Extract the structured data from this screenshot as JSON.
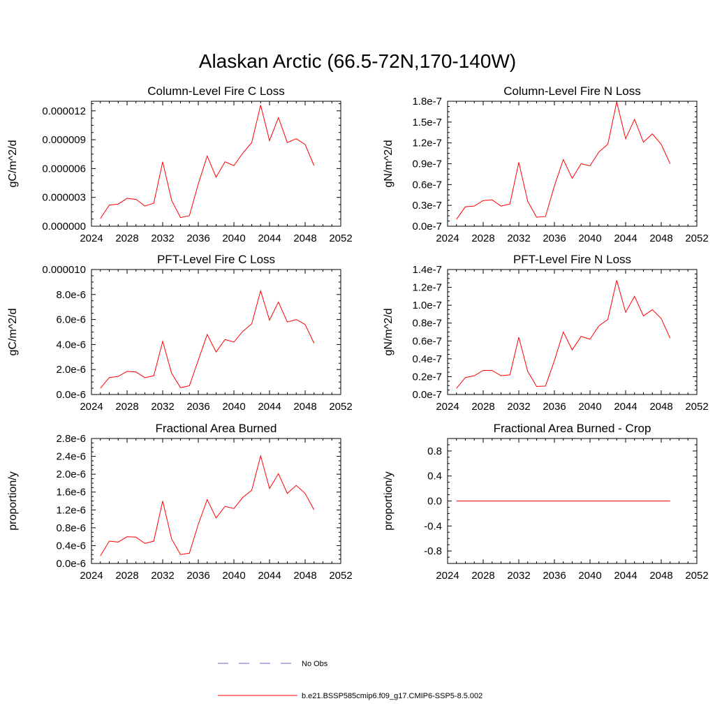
{
  "title": "Alaskan Arctic (66.5-72N,170-140W)",
  "colors": {
    "model": "#ff0000",
    "obs": "#6666cc",
    "axis": "#000000"
  },
  "legend": [
    {
      "label": "No Obs",
      "style": "dashed",
      "color": "#6666cc"
    },
    {
      "label": "b.e21.BSSP585cmip6.f09_g17.CMIP6-SSP5-8.5.002",
      "style": "solid",
      "color": "#ff0000"
    }
  ],
  "chart_data": [
    {
      "type": "line",
      "title": "Column-Level Fire C Loss",
      "xlabel": "",
      "ylabel": "gC/m^2/d",
      "xlim": [
        2024,
        2052
      ],
      "ylim": [
        0,
        1.3e-05
      ],
      "xticks": [
        2024,
        2028,
        2032,
        2036,
        2040,
        2044,
        2048,
        2052
      ],
      "yticks": [
        0,
        3e-06,
        6e-06,
        9e-06,
        1.2e-05
      ],
      "yticklabels": [
        "0.000000",
        "0.000003",
        "0.000006",
        "0.000009",
        "0.000012"
      ],
      "x": [
        2025,
        2026,
        2027,
        2028,
        2029,
        2030,
        2031,
        2032,
        2033,
        2034,
        2035,
        2036,
        2037,
        2038,
        2039,
        2040,
        2041,
        2042,
        2043,
        2044,
        2045,
        2046,
        2047,
        2048,
        2049
      ],
      "series": [
        {
          "values": [
            8e-07,
            2.2e-06,
            2.3e-06,
            2.9e-06,
            2.8e-06,
            2.1e-06,
            2.4e-06,
            6.7e-06,
            2.7e-06,
            9e-07,
            1.1e-06,
            4.4e-06,
            7.3e-06,
            5.1e-06,
            6.7e-06,
            6.3e-06,
            7.6e-06,
            8.7e-06,
            1.26e-05,
            8.9e-06,
            1.13e-05,
            8.7e-06,
            9.1e-06,
            8.5e-06,
            6.3e-06
          ]
        }
      ]
    },
    {
      "type": "line",
      "title": "Column-Level Fire N Loss",
      "xlabel": "",
      "ylabel": "gN/m^2/d",
      "xlim": [
        2024,
        2052
      ],
      "ylim": [
        0,
        1.8e-07
      ],
      "xticks": [
        2024,
        2028,
        2032,
        2036,
        2040,
        2044,
        2048,
        2052
      ],
      "yticks": [
        0,
        3e-08,
        6e-08,
        9e-08,
        1.2e-07,
        1.5e-07,
        1.8e-07
      ],
      "yticklabels": [
        "0.0e-7",
        "0.3e-7",
        "0.6e-7",
        "0.9e-7",
        "1.2e-7",
        "1.5e-7",
        "1.8e-7"
      ],
      "x": [
        2025,
        2026,
        2027,
        2028,
        2029,
        2030,
        2031,
        2032,
        2033,
        2034,
        2035,
        2036,
        2037,
        2038,
        2039,
        2040,
        2041,
        2042,
        2043,
        2044,
        2045,
        2046,
        2047,
        2048,
        2049
      ],
      "series": [
        {
          "values": [
            1e-08,
            2.8e-08,
            2.9e-08,
            3.7e-08,
            3.8e-08,
            2.9e-08,
            3.2e-08,
            9.2e-08,
            3.6e-08,
            1.3e-08,
            1.4e-08,
            5.8e-08,
            9.6e-08,
            6.9e-08,
            9e-08,
            8.7e-08,
            1.07e-07,
            1.18e-07,
            1.79e-07,
            1.26e-07,
            1.54e-07,
            1.21e-07,
            1.33e-07,
            1.18e-07,
            9e-08
          ]
        }
      ]
    },
    {
      "type": "line",
      "title": "PFT-Level Fire C Loss",
      "xlabel": "",
      "ylabel": "gC/m^2/d",
      "xlim": [
        2024,
        2052
      ],
      "ylim": [
        0,
        1e-05
      ],
      "xticks": [
        2024,
        2028,
        2032,
        2036,
        2040,
        2044,
        2048,
        2052
      ],
      "yticks": [
        0,
        2e-06,
        4e-06,
        6e-06,
        8e-06,
        1e-05
      ],
      "yticklabels": [
        "0.0e-6",
        "2.0e-6",
        "4.0e-6",
        "6.0e-6",
        "8.0e-6",
        "0.000010"
      ],
      "x": [
        2025,
        2026,
        2027,
        2028,
        2029,
        2030,
        2031,
        2032,
        2033,
        2034,
        2035,
        2036,
        2037,
        2038,
        2039,
        2040,
        2041,
        2042,
        2043,
        2044,
        2045,
        2046,
        2047,
        2048,
        2049
      ],
      "series": [
        {
          "values": [
            5e-07,
            1.35e-06,
            1.45e-06,
            1.85e-06,
            1.8e-06,
            1.35e-06,
            1.5e-06,
            4.25e-06,
            1.7e-06,
            5.5e-07,
            7e-07,
            2.75e-06,
            4.8e-06,
            3.4e-06,
            4.4e-06,
            4.2e-06,
            5.05e-06,
            5.65e-06,
            8.3e-06,
            5.95e-06,
            7.4e-06,
            5.8e-06,
            6e-06,
            5.6e-06,
            4.1e-06
          ]
        }
      ]
    },
    {
      "type": "line",
      "title": "PFT-Level Fire N Loss",
      "xlabel": "",
      "ylabel": "gN/m^2/d",
      "xlim": [
        2024,
        2052
      ],
      "ylim": [
        0,
        1.4e-07
      ],
      "xticks": [
        2024,
        2028,
        2032,
        2036,
        2040,
        2044,
        2048,
        2052
      ],
      "yticks": [
        0,
        2e-08,
        4e-08,
        6e-08,
        8e-08,
        1e-07,
        1.2e-07,
        1.4e-07
      ],
      "yticklabels": [
        "0.0e-7",
        "0.2e-7",
        "0.4e-7",
        "0.6e-7",
        "0.8e-7",
        "1.0e-7",
        "1.2e-7",
        "1.4e-7"
      ],
      "x": [
        2025,
        2026,
        2027,
        2028,
        2029,
        2030,
        2031,
        2032,
        2033,
        2034,
        2035,
        2036,
        2037,
        2038,
        2039,
        2040,
        2041,
        2042,
        2043,
        2044,
        2045,
        2046,
        2047,
        2048,
        2049
      ],
      "series": [
        {
          "values": [
            7e-09,
            1.9e-08,
            2.1e-08,
            2.7e-08,
            2.7e-08,
            2.1e-08,
            2.2e-08,
            6.4e-08,
            2.6e-08,
            9e-09,
            9.5e-09,
            3.8e-08,
            7e-08,
            5e-08,
            6.5e-08,
            6.2e-08,
            7.7e-08,
            8.4e-08,
            1.28e-07,
            9.2e-08,
            1.1e-07,
            8.8e-08,
            9.5e-08,
            8.5e-08,
            6.3e-08
          ]
        }
      ]
    },
    {
      "type": "line",
      "title": "Fractional Area Burned",
      "xlabel": "",
      "ylabel": "proportion/y",
      "xlim": [
        2024,
        2052
      ],
      "ylim": [
        0,
        2.8e-06
      ],
      "xticks": [
        2024,
        2028,
        2032,
        2036,
        2040,
        2044,
        2048,
        2052
      ],
      "yticks": [
        0,
        4e-07,
        8e-07,
        1.2e-06,
        1.6e-06,
        2e-06,
        2.4e-06,
        2.8e-06
      ],
      "yticklabels": [
        "0.0e-6",
        "0.4e-6",
        "0.8e-6",
        "1.2e-6",
        "1.6e-6",
        "2.0e-6",
        "2.4e-6",
        "2.8e-6"
      ],
      "x": [
        2025,
        2026,
        2027,
        2028,
        2029,
        2030,
        2031,
        2032,
        2033,
        2034,
        2035,
        2036,
        2037,
        2038,
        2039,
        2040,
        2041,
        2042,
        2043,
        2044,
        2045,
        2046,
        2047,
        2048,
        2049
      ],
      "series": [
        {
          "values": [
            1.7e-07,
            5e-07,
            4.8e-07,
            6e-07,
            5.9e-07,
            4.5e-07,
            5e-07,
            1.4e-06,
            5.5e-07,
            2e-07,
            2.3e-07,
            8.8e-07,
            1.43e-06,
            1.02e-06,
            1.28e-06,
            1.23e-06,
            1.48e-06,
            1.64e-06,
            2.41e-06,
            1.68e-06,
            2.01e-06,
            1.57e-06,
            1.75e-06,
            1.57e-06,
            1.2e-06
          ]
        }
      ]
    },
    {
      "type": "line",
      "title": "Fractional Area Burned - Crop",
      "xlabel": "",
      "ylabel": "proportion/y",
      "xlim": [
        2024,
        2052
      ],
      "ylim": [
        -1,
        1
      ],
      "xticks": [
        2024,
        2028,
        2032,
        2036,
        2040,
        2044,
        2048,
        2052
      ],
      "yticks": [
        -0.8,
        -0.4,
        0,
        0.4,
        0.8
      ],
      "yticklabels": [
        "-0.8",
        "-0.4",
        "0.0",
        "0.4",
        "0.8"
      ],
      "x": [
        2025,
        2026,
        2027,
        2028,
        2029,
        2030,
        2031,
        2032,
        2033,
        2034,
        2035,
        2036,
        2037,
        2038,
        2039,
        2040,
        2041,
        2042,
        2043,
        2044,
        2045,
        2046,
        2047,
        2048,
        2049
      ],
      "series": [
        {
          "values": [
            0,
            0,
            0,
            0,
            0,
            0,
            0,
            0,
            0,
            0,
            0,
            0,
            0,
            0,
            0,
            0,
            0,
            0,
            0,
            0,
            0,
            0,
            0,
            0,
            0
          ]
        }
      ]
    }
  ]
}
